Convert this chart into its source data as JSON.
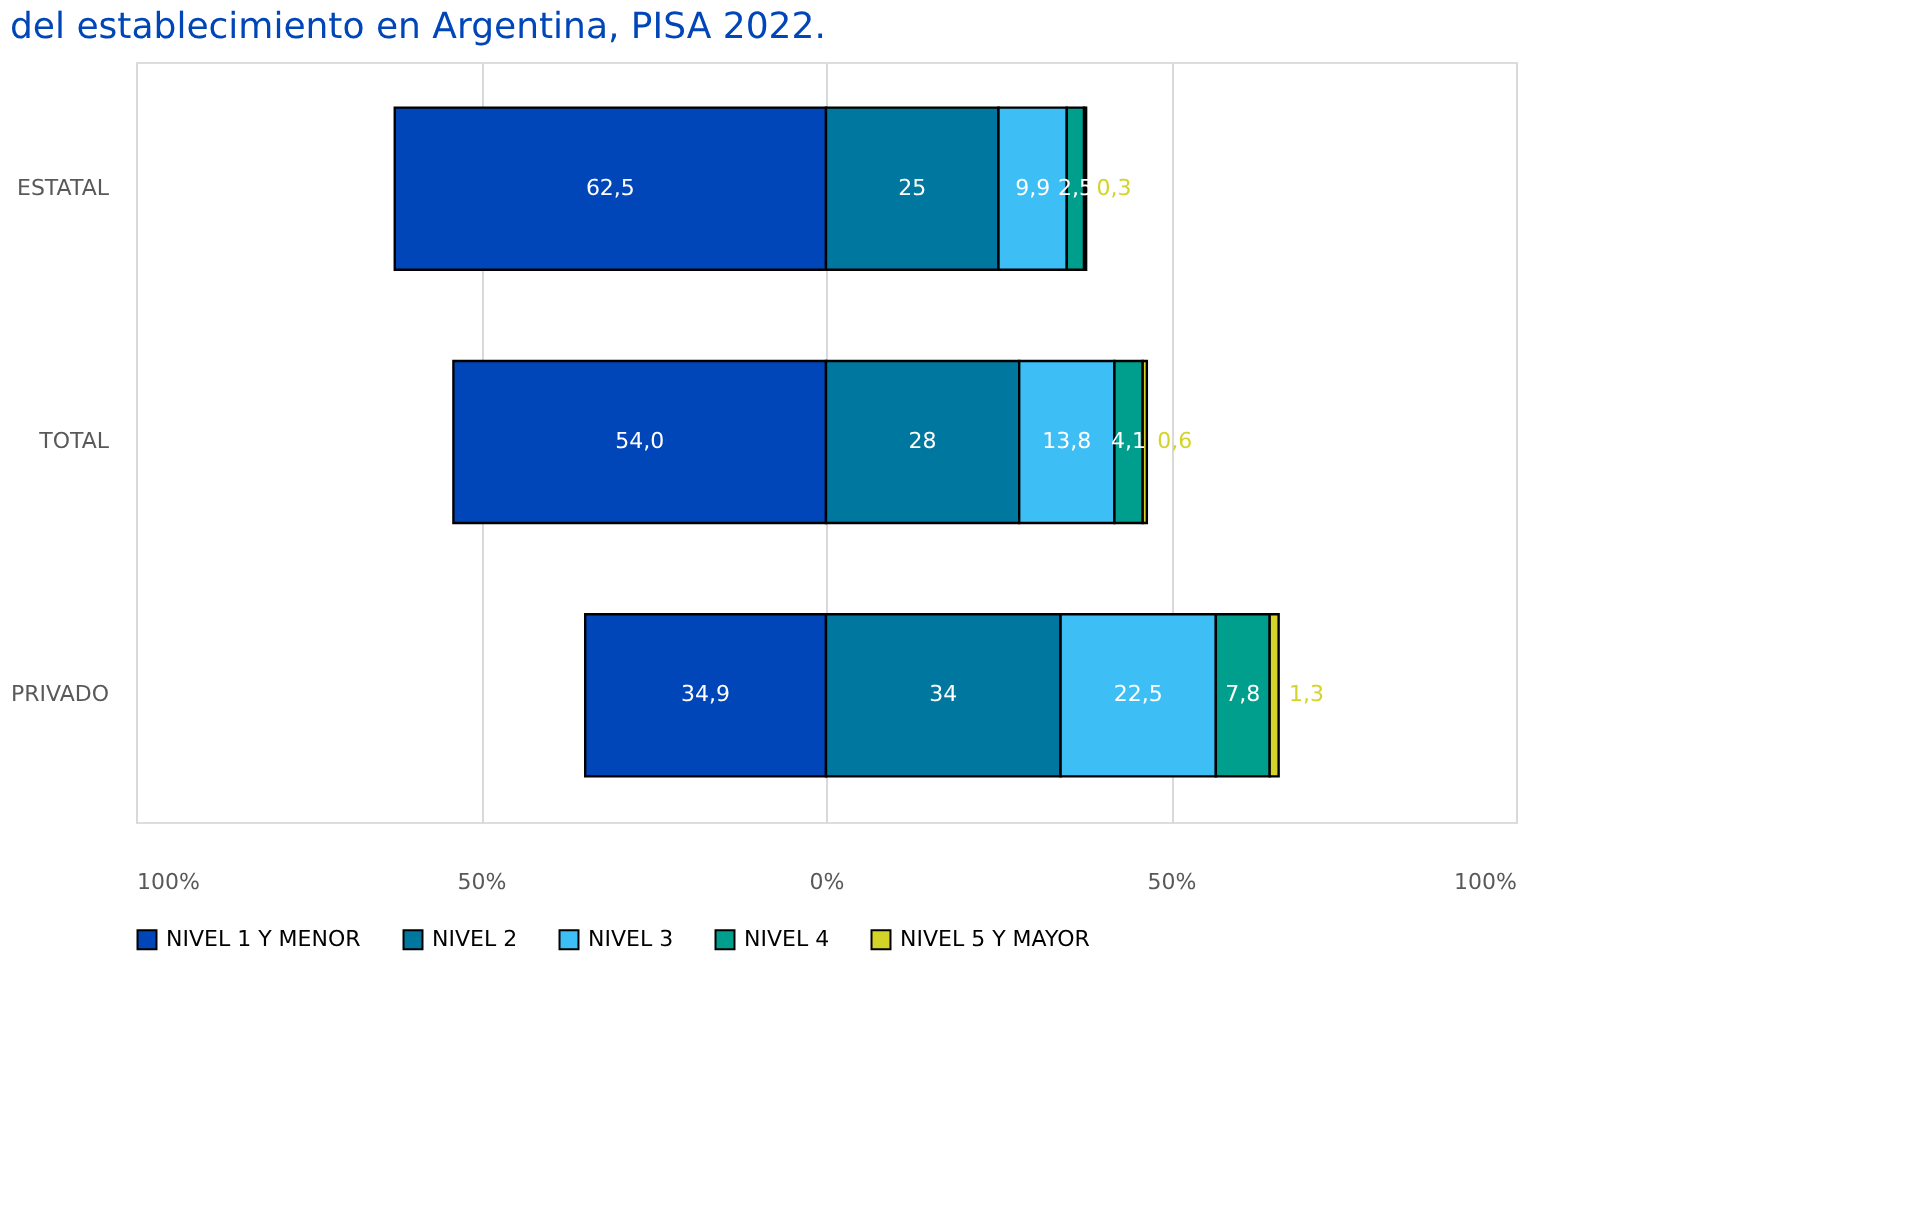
{
  "chart_data": {
    "type": "bar",
    "orientation": "horizontal",
    "stacked": true,
    "title": "del establecimiento en Argentina, PISA 2022.",
    "categories": [
      "ESTATAL",
      "TOTAL",
      "PRIVADO"
    ],
    "series": [
      {
        "name": "NIVEL 1 Y MENOR",
        "color": "#0046b8",
        "values": [
          62.5,
          54.0,
          34.9
        ],
        "base": [
          -62.5,
          -54.0,
          -34.9
        ],
        "value_labels": [
          "62,5",
          "54,0",
          "34,9"
        ]
      },
      {
        "name": "NIVEL 2",
        "color": "#00779e",
        "values": [
          25,
          28,
          34
        ],
        "value_labels": [
          "25",
          "28",
          "34"
        ]
      },
      {
        "name": "NIVEL 3",
        "color": "#3dbff5",
        "values": [
          9.9,
          13.8,
          22.5
        ],
        "value_labels": [
          "9,9",
          "13,8",
          "22,5"
        ]
      },
      {
        "name": "NIVEL 4",
        "color": "#009e8c",
        "values": [
          2.5,
          4.1,
          7.8
        ],
        "value_labels": [
          "2,5",
          "4,1",
          "7,8"
        ]
      },
      {
        "name": "NIVEL 5 Y MAYOR",
        "color": "#d4d428",
        "values": [
          0.3,
          0.6,
          1.3
        ],
        "value_labels": [
          "0,3",
          "0,6",
          "1,3"
        ]
      }
    ],
    "xlim": [
      -100,
      100
    ],
    "xticks": [
      {
        "value": -100,
        "label": "100%"
      },
      {
        "value": -50,
        "label": "50%"
      },
      {
        "value": 0,
        "label": "0%"
      },
      {
        "value": 50,
        "label": "50%"
      },
      {
        "value": 100,
        "label": "100%"
      }
    ],
    "grid": "x",
    "legend": "bottom"
  }
}
